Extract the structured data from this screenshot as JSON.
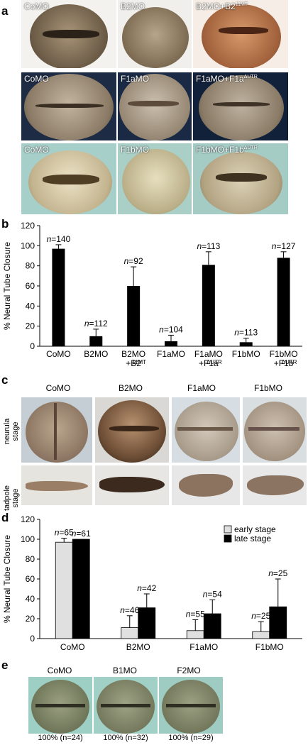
{
  "panels": {
    "a": {
      "letter": "a",
      "rows": [
        {
          "labels": [
            "CoMO",
            "B2MO",
            "B2MO+B2",
            "11MT"
          ]
        },
        {
          "labels": [
            "CoMO",
            "F1aMO",
            "F1aMO+F1a",
            "ΔUTR"
          ]
        },
        {
          "labels": [
            "CoMO",
            "F1bMO",
            "F1bMO+F1b",
            "ΔUTR"
          ]
        }
      ]
    },
    "b": {
      "letter": "b"
    },
    "c": {
      "letter": "c",
      "columns": [
        "CoMO",
        "B2MO",
        "F1aMO",
        "F1bMO"
      ],
      "rows": [
        "neurula stage",
        "tadpole stage"
      ]
    },
    "d": {
      "letter": "d"
    },
    "e": {
      "letter": "e",
      "columns": [
        "CoMO",
        "B1MO",
        "F2MO"
      ],
      "percents": [
        "100% (n=24)",
        "100% (n=32)",
        "100% (n=29)"
      ]
    }
  },
  "chart_data": [
    {
      "type": "bar",
      "categories": [
        "CoMO",
        "B2MO",
        "B2MO +B2 11MT",
        "F1aMO",
        "F1aMO +F1a ΔUTR",
        "F1bMO",
        "F1bMO +F1b ΔUTR"
      ],
      "category_lines": [
        [
          "CoMO"
        ],
        [
          "B2MO"
        ],
        [
          "B2MO",
          "+B2",
          "11MT"
        ],
        [
          "F1aMO"
        ],
        [
          "F1aMO",
          "+F1a",
          "ΔUTR"
        ],
        [
          "F1bMO"
        ],
        [
          "F1bMO",
          "+F1b",
          "ΔUTR"
        ]
      ],
      "values": [
        97,
        10,
        60,
        5,
        81,
        4,
        88
      ],
      "errors": [
        4,
        7,
        19,
        6,
        13,
        4,
        6
      ],
      "n_labels": [
        "n=140",
        "n=112",
        "n=92",
        "n=104",
        "n=113",
        "n=113",
        "n=127"
      ],
      "ylabel": "% Neural Tube Closure",
      "ylim": [
        0,
        120
      ],
      "yticks": [
        0,
        20,
        40,
        60,
        80,
        100,
        120
      ],
      "color": "#000000"
    },
    {
      "type": "bar",
      "categories": [
        "CoMO",
        "B2MO",
        "F1aMO",
        "F1bMO"
      ],
      "series": [
        {
          "name": "early stage",
          "color": "#e0e0e0",
          "values": [
            97,
            11,
            8,
            7
          ],
          "errors": [
            4,
            12,
            11,
            10
          ],
          "n_labels": [
            "n=65",
            "n=46",
            "n=55",
            "n=25"
          ]
        },
        {
          "name": "late stage",
          "color": "#000000",
          "values": [
            100,
            31,
            25,
            32
          ],
          "errors": [
            0,
            14,
            14,
            28
          ],
          "n_labels": [
            "n=61",
            "n=42",
            "n=54",
            "n=25"
          ]
        }
      ],
      "ylabel": "% Neural Tube Closure",
      "ylim": [
        0,
        120
      ],
      "yticks": [
        0,
        20,
        40,
        60,
        80,
        100,
        120
      ],
      "legend": "top-right"
    }
  ]
}
